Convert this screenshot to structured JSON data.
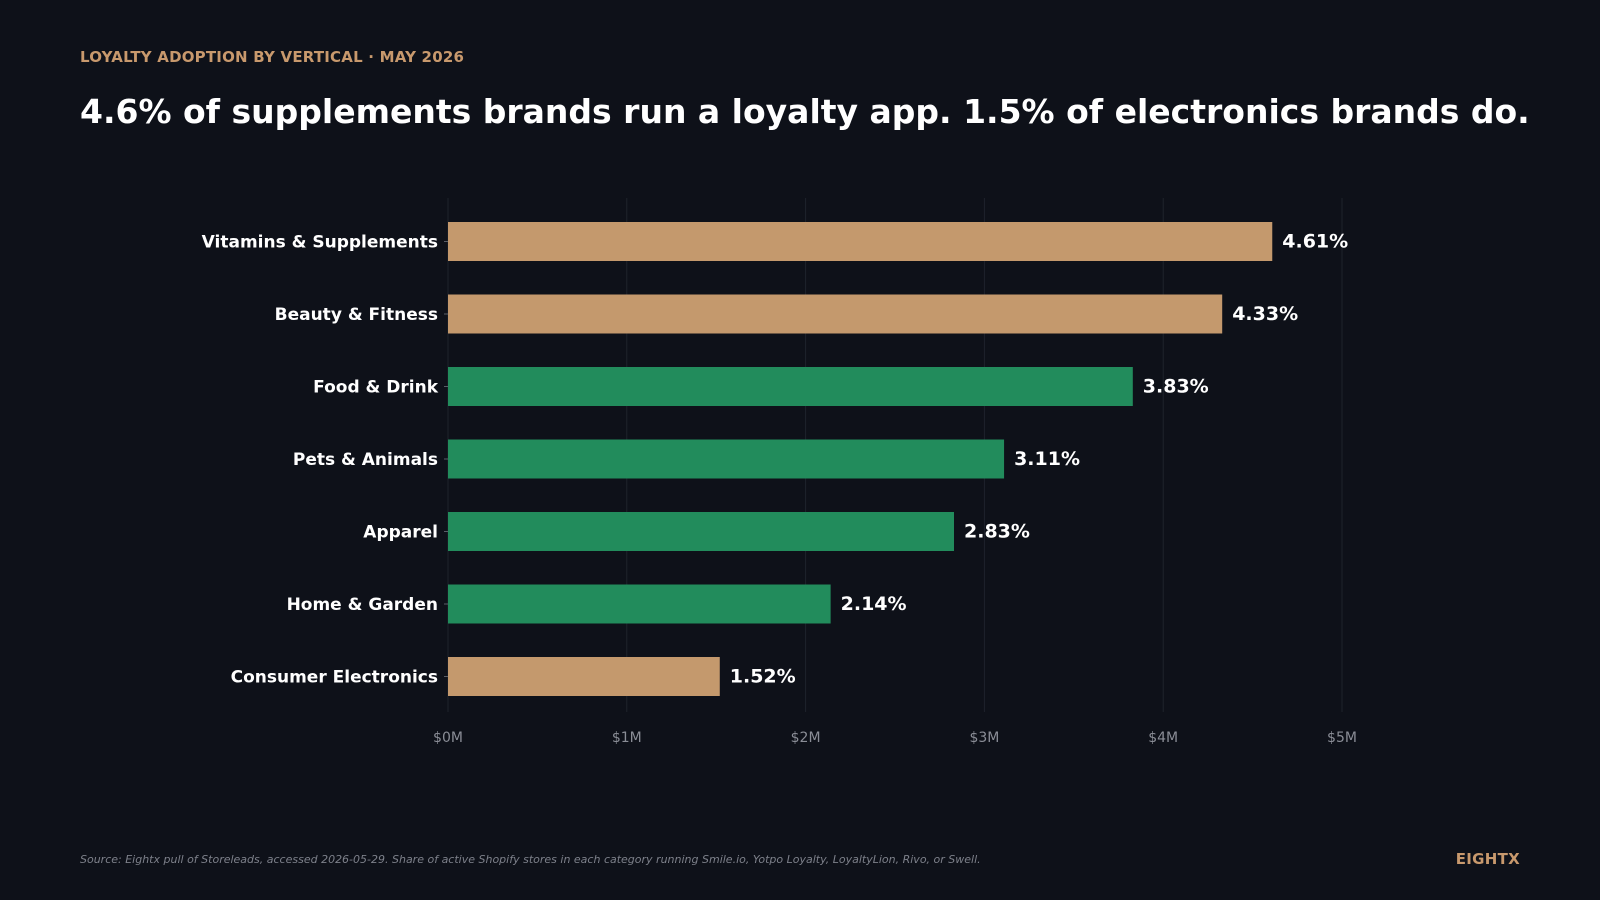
{
  "header": {
    "eyebrow": "LOYALTY ADOPTION BY VERTICAL  ·  MAY 2026",
    "headline": "4.6% of supplements brands run a loyalty app. 1.5% of electronics brands do."
  },
  "footer": {
    "source": "Source: Eightx pull of Storeleads, accessed 2026-05-29. Share of active Shopify stores in each category running Smile.io, Yotpo Loyalty, LoyaltyLion, Rivo, or Swell.",
    "brand": "EIGHTX"
  },
  "colors": {
    "background": "#0e1119",
    "accent_tan": "#c4996d",
    "accent_green": "#228c5c",
    "grid": "#1f232c",
    "tick_text": "#8a8d96"
  },
  "chart_data": {
    "type": "bar",
    "orientation": "horizontal",
    "categories": [
      "Vitamins & Supplements",
      "Beauty & Fitness",
      "Food & Drink",
      "Pets & Animals",
      "Apparel",
      "Home & Garden",
      "Consumer Electronics"
    ],
    "values": [
      4.61,
      4.33,
      3.83,
      3.11,
      2.83,
      2.14,
      1.52
    ],
    "value_labels": [
      "4.61%",
      "4.33%",
      "3.83%",
      "3.11%",
      "2.83%",
      "2.14%",
      "1.52%"
    ],
    "bar_colors": [
      "tan",
      "tan",
      "green",
      "green",
      "green",
      "green",
      "tan"
    ],
    "xlim": [
      0,
      5
    ],
    "x_ticks": [
      0,
      1,
      2,
      3,
      4,
      5
    ],
    "x_tick_labels": [
      "$0M",
      "$1M",
      "$2M",
      "$3M",
      "$4M",
      "$5M"
    ],
    "grid": "vertical",
    "title": "",
    "xlabel": "",
    "ylabel": ""
  }
}
